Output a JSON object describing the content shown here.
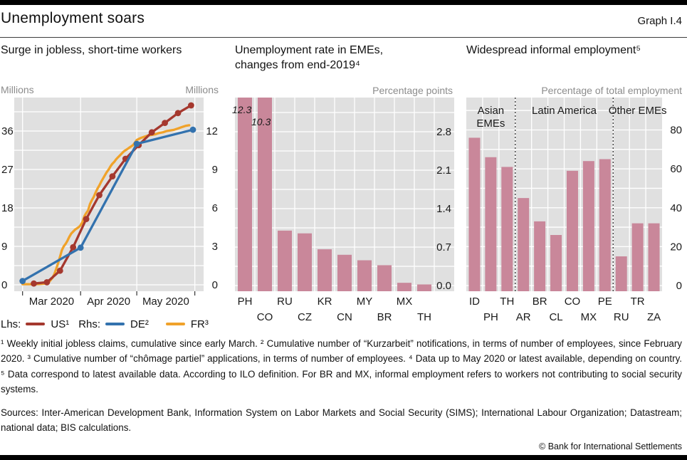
{
  "header": {
    "title": "Unemployment soars",
    "graph_label": "Graph I.4"
  },
  "footnotes": {
    "text": "¹ Weekly initial jobless claims, cumulative since early March.    ² Cumulative number of “Kurzarbeit” notifications, in terms of number of employees, since February 2020.    ³ Cumulative number of “chômage partiel” applications, in terms of number of employees.    ⁴ Data up to May 2020 or latest available, depending on country.    ⁵ Data correspond to latest available data. According to ILO definition. For BR and MX, informal employment refers to workers not contributing to social security systems."
  },
  "sources": {
    "text": "Sources: Inter-American Development Bank, Information System on Labor Markets and Social Security (SIMS); International Labour Organization; Datastream; national data; BIS calculations."
  },
  "footer": {
    "copyright": "© Bank for International Settlements"
  },
  "colors": {
    "plot_background": "#e0e0e0",
    "gridline": "#ffffff",
    "unit_label": "#8c8c8c",
    "us_red": "#a5382e",
    "de_blue": "#3372ae",
    "fr_orange": "#f0a22a",
    "bar_pink": "#c9879a"
  },
  "chart_data": [
    {
      "type": "line",
      "title": "Surge in jobless, short-time workers",
      "ylabel_left": "Millions",
      "ylabel_right": "Millions",
      "left_axis": {
        "min": 0,
        "max": 43.8,
        "tick_labels": [
          0,
          9,
          18,
          27,
          36
        ],
        "minor_every": 4.5
      },
      "right_axis": {
        "min": 0,
        "max": 14.6,
        "tick_labels": [
          0,
          3,
          6,
          9,
          12
        ],
        "minor_every": 1.5
      },
      "x_ticks_days": [
        3,
        34,
        64,
        95
      ],
      "month_labels": [
        "Mar 2020",
        "Apr 2020",
        "May 2020"
      ],
      "legend": {
        "lhs_label": "Lhs:",
        "rhs_label": "Rhs:"
      },
      "series": [
        {
          "name": "FR",
          "label": "FR³",
          "axis": "right",
          "color": "#f0a22a",
          "marker": false,
          "points": [
            [
              3,
              0.05
            ],
            [
              8,
              0.05
            ],
            [
              12,
              0.06
            ],
            [
              15,
              0.1
            ],
            [
              17,
              0.2
            ],
            [
              19,
              0.55
            ],
            [
              20,
              0.85
            ],
            [
              21,
              1.25
            ],
            [
              22,
              1.7
            ],
            [
              23,
              2.2
            ],
            [
              24,
              2.7
            ],
            [
              25,
              3.0
            ],
            [
              26,
              3.2
            ],
            [
              27,
              3.45
            ],
            [
              28,
              3.75
            ],
            [
              29,
              4.0
            ],
            [
              30,
              4.15
            ],
            [
              31,
              4.3
            ],
            [
              32,
              4.4
            ],
            [
              33,
              4.5
            ],
            [
              34,
              4.65
            ],
            [
              35,
              4.9
            ],
            [
              36,
              5.35
            ],
            [
              37,
              5.6
            ],
            [
              38,
              5.8
            ],
            [
              39,
              6.3
            ],
            [
              40,
              6.6
            ],
            [
              41,
              6.85
            ],
            [
              42,
              7.2
            ],
            [
              43,
              7.5
            ],
            [
              44,
              7.75
            ],
            [
              45,
              8.05
            ],
            [
              46,
              8.3
            ],
            [
              47,
              8.55
            ],
            [
              48,
              8.8
            ],
            [
              49,
              9.0
            ],
            [
              50,
              9.25
            ],
            [
              51,
              9.45
            ],
            [
              52,
              9.6
            ],
            [
              53,
              9.8
            ],
            [
              54,
              9.95
            ],
            [
              55,
              10.1
            ],
            [
              56,
              10.25
            ],
            [
              57,
              10.4
            ],
            [
              58,
              10.5
            ],
            [
              59,
              10.6
            ],
            [
              60,
              10.7
            ],
            [
              61,
              10.8
            ],
            [
              62,
              10.9
            ],
            [
              63,
              11.1
            ],
            [
              64,
              11.3
            ],
            [
              66,
              11.45
            ],
            [
              68,
              11.55
            ],
            [
              70,
              11.65
            ],
            [
              72,
              11.7
            ],
            [
              74,
              11.75
            ],
            [
              76,
              11.85
            ],
            [
              78,
              11.9
            ],
            [
              80,
              12.0
            ],
            [
              82,
              12.05
            ],
            [
              84,
              12.1
            ],
            [
              86,
              12.2
            ],
            [
              88,
              12.3
            ],
            [
              90,
              12.4
            ],
            [
              92,
              12.45
            ]
          ]
        },
        {
          "name": "US",
          "label": "US¹",
          "axis": "left",
          "color": "#a5382e",
          "marker": true,
          "points": [
            [
              9,
              0.3
            ],
            [
              16,
              0.6
            ],
            [
              23,
              3.3
            ],
            [
              30,
              8.8
            ],
            [
              37,
              15.4
            ],
            [
              44,
              21.0
            ],
            [
              51,
              25.4
            ],
            [
              58,
              29.5
            ],
            [
              65,
              32.7
            ],
            [
              72,
              35.7
            ],
            [
              79,
              37.9
            ],
            [
              86,
              40.2
            ],
            [
              93,
              42.0
            ]
          ]
        },
        {
          "name": "DE",
          "label": "DE²",
          "axis": "right",
          "color": "#3372ae",
          "marker": true,
          "points": [
            [
              3,
              0.3
            ],
            [
              34,
              2.9
            ],
            [
              64,
              11.0
            ],
            [
              94,
              12.1
            ]
          ]
        }
      ]
    },
    {
      "type": "bar",
      "title_line1": "Unemployment rate in EMEs,",
      "title_line2": "changes from end-2019⁴",
      "unit_label": "Percentage points",
      "categories": [
        "PH",
        "CO",
        "RU",
        "CZ",
        "KR",
        "CN",
        "MY",
        "BR",
        "MX",
        "TH"
      ],
      "values": [
        12.3,
        10.3,
        1.0,
        0.95,
        0.66,
        0.56,
        0.46,
        0.37,
        0.05,
        0.02
      ],
      "clipped_bar_labels": [
        "12.3",
        "10.3"
      ],
      "axis": {
        "min": 0,
        "max": 3.42,
        "tick_labels": [
          "0.0",
          "0.7",
          "1.4",
          "2.1",
          "2.8"
        ],
        "tick_values": [
          0,
          0.7,
          1.4,
          2.1,
          2.8
        ],
        "minor_every": 0.35,
        "labels_inside": true
      },
      "bar_color": "#c9879a"
    },
    {
      "type": "bar",
      "title": "Widespread informal employment⁵",
      "unit_label": "Percentage of total employment",
      "categories": [
        "ID",
        "PH",
        "TH",
        "AR",
        "BR",
        "CL",
        "CO",
        "MX",
        "PE",
        "RU",
        "TR",
        "ZA"
      ],
      "values": [
        76,
        66,
        61,
        45,
        33,
        26,
        59,
        64,
        65,
        15,
        32,
        32
      ],
      "groups": [
        {
          "label_lines": [
            "Asian",
            "EMEs"
          ],
          "from": 0,
          "to": 2
        },
        {
          "label_lines": [
            "Latin America"
          ],
          "from": 3,
          "to": 8
        },
        {
          "label_lines": [
            "Other EMEs"
          ],
          "from": 9,
          "to": 11
        }
      ],
      "separators_after": [
        2,
        8
      ],
      "axis": {
        "min": 0,
        "max": 97,
        "tick_labels": [
          "0",
          "20",
          "40",
          "60",
          "80"
        ],
        "tick_values": [
          0,
          20,
          40,
          60,
          80
        ],
        "minor_every": 10,
        "labels_inside": false
      },
      "bar_color": "#c9879a"
    }
  ]
}
